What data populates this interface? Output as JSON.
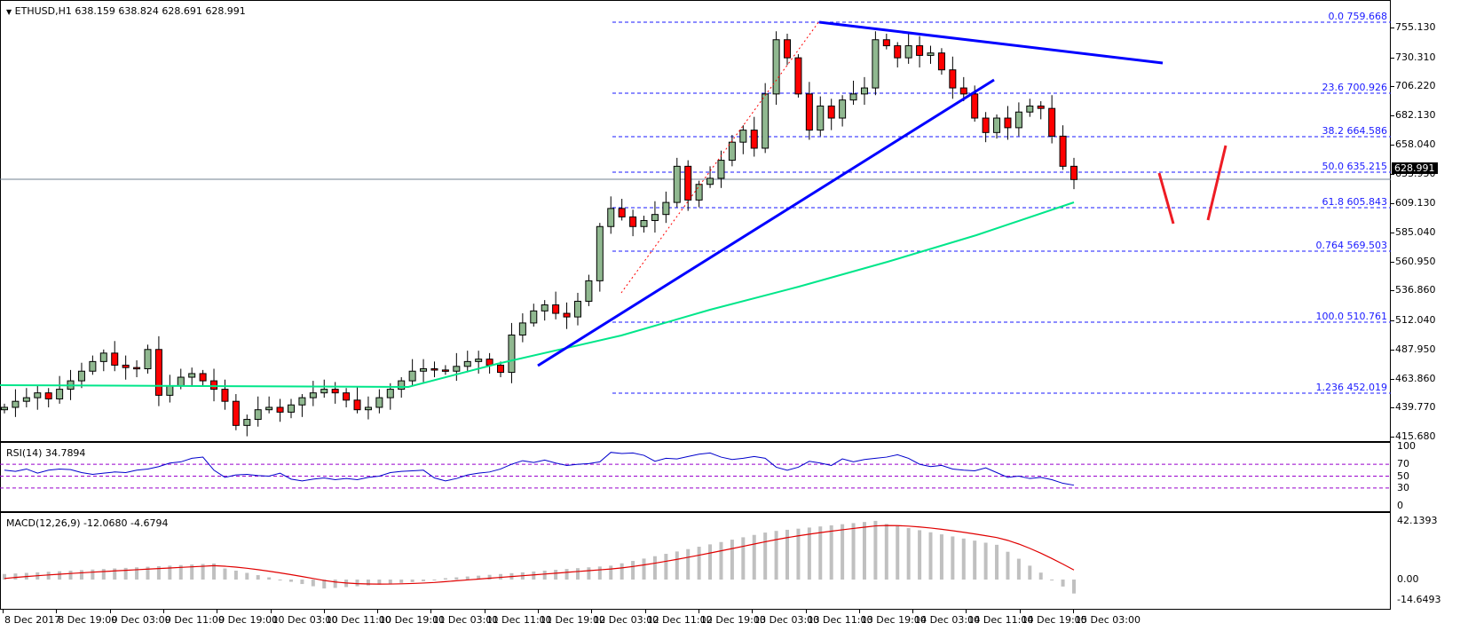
{
  "header": {
    "symbol_line": "ETHUSD,H1  638.159 638.824 628.691 628.991",
    "menu_icon": "triangle-down-icon"
  },
  "price_axis": {
    "labels": [
      "755.130",
      "730.310",
      "706.220",
      "682.130",
      "658.040",
      "633.950",
      "609.130",
      "585.040",
      "560.950",
      "536.860",
      "512.040",
      "487.950",
      "463.860",
      "439.770",
      "415.680"
    ],
    "current_price": "628.991"
  },
  "fibonacci": {
    "levels": [
      {
        "ratio": "0.0",
        "price": "759.668"
      },
      {
        "ratio": "23.6",
        "price": "700.926"
      },
      {
        "ratio": "38.2",
        "price": "664.586"
      },
      {
        "ratio": "50.0",
        "price": "635.215"
      },
      {
        "ratio": "61.8",
        "price": "605.843"
      },
      {
        "ratio": "0.764",
        "price": "569.503"
      },
      {
        "ratio": "100.0",
        "price": "510.761"
      },
      {
        "ratio": "1.236",
        "price": "452.019"
      }
    ]
  },
  "rsi": {
    "title": "RSI(14) 34.7894",
    "axis_labels": [
      "100",
      "70",
      "50",
      "30",
      "0"
    ]
  },
  "macd": {
    "title": "MACD(12,26,9) -12.0680 -4.6794",
    "axis_labels": [
      "42.1393",
      "0.00",
      "-14.6493"
    ]
  },
  "time_axis": {
    "labels": [
      "8 Dec 2017",
      "8 Dec 19:00",
      "9 Dec 03:00",
      "9 Dec 11:00",
      "9 Dec 19:00",
      "10 Dec 03:00",
      "10 Dec 11:00",
      "10 Dec 19:00",
      "11 Dec 03:00",
      "11 Dec 11:00",
      "11 Dec 19:00",
      "12 Dec 03:00",
      "12 Dec 11:00",
      "12 Dec 19:00",
      "13 Dec 03:00",
      "13 Dec 11:00",
      "13 Dec 19:00",
      "14 Dec 03:00",
      "14 Dec 11:00",
      "14 Dec 19:00",
      "15 Dec 03:00"
    ]
  },
  "colors": {
    "bull_candle": "#90b890",
    "bear_candle": "#ff0000",
    "trendline": "#0000ff",
    "ma_line": "#00e68a",
    "fib_line": "#1a1aff",
    "rsi_line": "#0000cc",
    "rsi_levels": "#9900cc",
    "macd_hist": "#c0c0c0",
    "macd_signal": "#e00000",
    "current_price_line": "#708090"
  },
  "chart_data": [
    {
      "type": "candlestick",
      "title": "ETHUSD,H1",
      "ohlc_last": {
        "open": 638.159,
        "high": 638.824,
        "low": 628.691,
        "close": 628.991
      },
      "ylim": [
        415.68,
        765
      ],
      "x_range": [
        "8 Dec 2017",
        "15 Dec 03:00"
      ],
      "approx_closes": [
        440,
        445,
        448,
        452,
        447,
        455,
        462,
        470,
        478,
        485,
        475,
        473,
        472,
        488,
        450,
        458,
        465,
        468,
        462,
        455,
        445,
        425,
        430,
        438,
        440,
        436,
        442,
        448,
        452,
        455,
        452,
        446,
        438,
        440,
        448,
        455,
        462,
        470,
        472,
        471,
        470,
        474,
        478,
        480,
        475,
        469,
        500,
        510,
        520,
        525,
        518,
        515,
        528,
        545,
        590,
        605,
        598,
        590,
        595,
        600,
        610,
        640,
        612,
        625,
        630,
        645,
        660,
        670,
        655,
        700,
        745,
        730,
        700,
        670,
        690,
        680,
        695,
        700,
        705,
        745,
        740,
        730,
        740,
        732,
        734,
        720,
        705,
        700,
        680,
        668,
        680,
        672,
        685,
        690,
        688,
        665,
        640,
        628.991
      ],
      "fib_levels": {
        "0.0": 759.668,
        "23.6": 700.926,
        "38.2": 664.586,
        "50.0": 635.215,
        "61.8": 605.843,
        "76.4": 569.503,
        "100.0": 510.761,
        "123.6": 452.019
      },
      "annotations": [
        "ascending trendline",
        "descending resistance trendline",
        "100 SMA (green)",
        "projected red W path"
      ]
    },
    {
      "type": "line",
      "title": "RSI(14) 34.7894",
      "ylim": [
        0,
        100
      ],
      "levels": [
        30,
        50,
        70
      ],
      "last_value": 34.7894
    },
    {
      "type": "bar",
      "title": "MACD(12,26,9) -12.0680 -4.6794",
      "ylim": [
        -14.6493,
        42.1393
      ],
      "macd": -12.068,
      "signal": -4.6794
    }
  ]
}
